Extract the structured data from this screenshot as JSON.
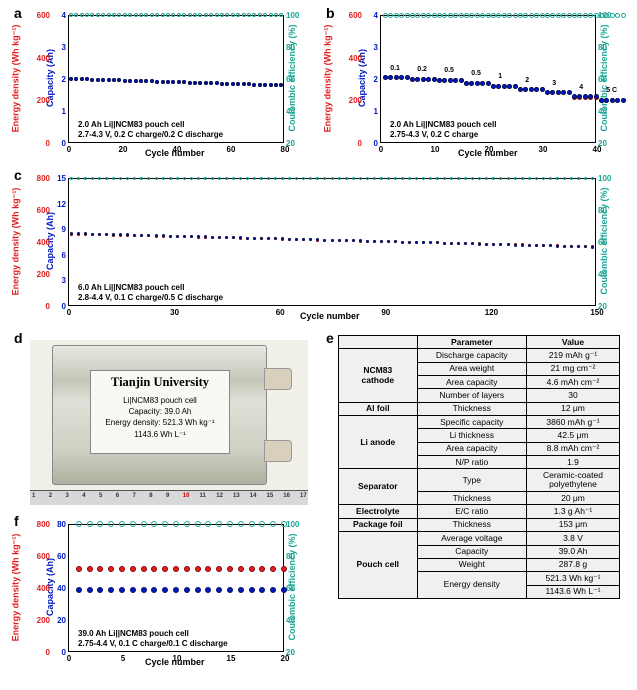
{
  "panels": {
    "a": {
      "label": "a",
      "annotation": "2.0 Ah Li||NCM83 pouch cell\n2.7-4.3 V, 0.2 C charge/0.2 C discharge"
    },
    "b": {
      "label": "b",
      "annotation": "2.0 Ah Li||NCM83 pouch cell\n2.75-4.3 V, 0.2 C charge",
      "rates": [
        "0.1",
        "0.2",
        "0.5",
        "0.5",
        "1",
        "2",
        "3",
        "4",
        "5 C"
      ]
    },
    "c": {
      "label": "c",
      "annotation": "6.0 Ah Li||NCM83 pouch cell\n2.8-4.4 V, 0.1 C charge/0.5 C discharge"
    },
    "d": {
      "label": "d",
      "university": "Tianjin University",
      "cell_line1": "Li|NCM83 pouch cell",
      "cell_line2": "Capacity: 39.0 Ah",
      "cell_line3": "Energy density: 521.3 Wh kg⁻¹",
      "cell_line4": "1143.6 Wh L⁻¹",
      "ruler_ticks": [
        "1",
        "2",
        "3",
        "4",
        "5",
        "6",
        "7",
        "8",
        "9",
        "10",
        "11",
        "12",
        "13",
        "14",
        "15",
        "16",
        "17"
      ]
    },
    "e": {
      "label": "e"
    },
    "f": {
      "label": "f",
      "annotation": "39.0 Ah Li||NCM83 pouch cell\n2.75-4.4 V, 0.1 C charge/0.1 C discharge"
    }
  },
  "axes": {
    "left1_label": "Energy density (Wh kg⁻¹)",
    "left2_label": "Capacity (Ah)",
    "right_label": "Coulombic efficiency (%)",
    "xlabel": "Cycle number",
    "a": {
      "y1_ticks": [
        "0",
        "200",
        "400",
        "600"
      ],
      "y2_ticks": [
        "0",
        "1",
        "2",
        "3",
        "4"
      ],
      "yr_ticks": [
        "20",
        "40",
        "60",
        "80",
        "100"
      ],
      "x_ticks": [
        "0",
        "20",
        "40",
        "60",
        "80"
      ],
      "xlim": [
        0,
        80
      ],
      "y1_lim": [
        0,
        600
      ],
      "y2_lim": [
        0,
        4
      ],
      "yr_lim": [
        20,
        100
      ]
    },
    "b": {
      "y1_ticks": [
        "0",
        "200",
        "400",
        "600"
      ],
      "y2_ticks": [
        "0",
        "1",
        "2",
        "3",
        "4"
      ],
      "yr_ticks": [
        "20",
        "40",
        "60",
        "80",
        "100"
      ],
      "x_ticks": [
        "0",
        "10",
        "20",
        "30",
        "40"
      ],
      "xlim": [
        0,
        40
      ],
      "y1_lim": [
        0,
        600
      ],
      "y2_lim": [
        0,
        4
      ],
      "yr_lim": [
        20,
        100
      ]
    },
    "c": {
      "y1_ticks": [
        "0",
        "200",
        "400",
        "600",
        "800"
      ],
      "y2_ticks": [
        "0",
        "3",
        "6",
        "9",
        "12",
        "15"
      ],
      "yr_ticks": [
        "20",
        "40",
        "60",
        "80",
        "100"
      ],
      "x_ticks": [
        "0",
        "30",
        "60",
        "90",
        "120",
        "150"
      ],
      "xlim": [
        0,
        150
      ],
      "y1_lim": [
        0,
        800
      ],
      "y2_lim": [
        0,
        15
      ],
      "yr_lim": [
        20,
        100
      ]
    },
    "f": {
      "y1_ticks": [
        "0",
        "200",
        "400",
        "600",
        "800"
      ],
      "y2_ticks": [
        "0",
        "20",
        "40",
        "60",
        "80"
      ],
      "yr_ticks": [
        "20",
        "40",
        "60",
        "80",
        "100"
      ],
      "x_ticks": [
        "0",
        "5",
        "10",
        "15",
        "20"
      ],
      "xlim": [
        0,
        20
      ],
      "y1_lim": [
        0,
        800
      ],
      "y2_lim": [
        0,
        80
      ],
      "yr_lim": [
        20,
        100
      ]
    }
  },
  "series": {
    "a": {
      "teal_y": 100,
      "red_start": 300,
      "red_end": 270,
      "blue_start": 2.0,
      "blue_end": 1.8,
      "n": 80,
      "marker_px": 4
    },
    "b": {
      "teal_y": 100,
      "segments": [
        {
          "count": 5,
          "red": 305,
          "blue": 2.05
        },
        {
          "count": 5,
          "red": 300,
          "blue": 2.0
        },
        {
          "count": 5,
          "red": 295,
          "blue": 1.95
        },
        {
          "count": 5,
          "red": 280,
          "blue": 1.85
        },
        {
          "count": 5,
          "red": 265,
          "blue": 1.77
        },
        {
          "count": 5,
          "red": 250,
          "blue": 1.67
        },
        {
          "count": 5,
          "red": 235,
          "blue": 1.57
        },
        {
          "count": 5,
          "red": 215,
          "blue": 1.45
        },
        {
          "count": 5,
          "red": 200,
          "blue": 1.33
        }
      ],
      "marker_px": 5
    },
    "c": {
      "teal_y": 100,
      "red_start": 450,
      "red_end": 370,
      "blue_start": 8.5,
      "blue_end": 6.9,
      "n": 150,
      "marker_px": 3
    },
    "f": {
      "teal_y": 100,
      "red": 520,
      "blue": 39,
      "n": 20,
      "marker_px": 6
    }
  },
  "table": {
    "headers": [
      "",
      "Parameter",
      "Value"
    ],
    "sections": [
      {
        "cat": "NCM83\ncathode",
        "rows": [
          [
            "Discharge capacity",
            "219 mAh g⁻¹"
          ],
          [
            "Area weight",
            "21 mg cm⁻²"
          ],
          [
            "Area capacity",
            "4.6 mAh cm⁻²"
          ],
          [
            "Number of layers",
            "30"
          ]
        ]
      },
      {
        "cat": "Al foil",
        "rows": [
          [
            "Thickness",
            "12 μm"
          ]
        ]
      },
      {
        "cat": "Li anode",
        "rows": [
          [
            "Specific capacity",
            "3860 mAh g⁻¹"
          ],
          [
            "Li thickness",
            "42.5 μm"
          ],
          [
            "Area capacity",
            "8.8 mAh cm⁻²"
          ],
          [
            "N/P ratio",
            "1.9"
          ]
        ]
      },
      {
        "cat": "Separator",
        "rows": [
          [
            "Type",
            "Ceramic-coated\npolyethylene"
          ],
          [
            "Thickness",
            "20 μm"
          ]
        ]
      },
      {
        "cat": "Electrolyte",
        "rows": [
          [
            "E/C ratio",
            "1.3 g Ah⁻¹"
          ]
        ]
      },
      {
        "cat": "Package foil",
        "rows": [
          [
            "Thickness",
            "153 μm"
          ]
        ]
      },
      {
        "cat": "Pouch cell",
        "rows": [
          [
            "Average voltage",
            "3.8 V"
          ],
          [
            "Capacity",
            "39.0 Ah"
          ],
          [
            "Weight",
            "287.8 g"
          ]
        ],
        "ed_rows": [
          [
            "521.3 Wh kg⁻¹"
          ],
          [
            "1143.6 Wh L⁻¹"
          ]
        ],
        "ed_label": "Energy density"
      }
    ]
  },
  "colors": {
    "red": "#e02020",
    "blue": "#0018c0",
    "teal": "#1aa596"
  },
  "fontsize": {
    "panel_label": 14,
    "axis_label": 9,
    "xlabel": 9,
    "annotation": 8
  }
}
